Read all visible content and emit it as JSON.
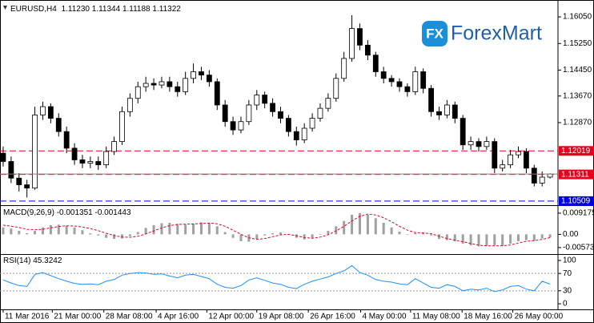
{
  "chart_data": [
    {
      "type": "candlestick",
      "title": "EURUSD,H4",
      "ohlc_labels": [
        "1.11230",
        "1.11344",
        "1.11188",
        "1.11322"
      ],
      "open": [
        1.1195,
        1.117,
        1.112,
        1.11,
        1.109,
        1.131,
        1.1335,
        1.13,
        1.126,
        1.121,
        1.1175,
        1.1165,
        1.117,
        1.116,
        1.12,
        1.123,
        1.132,
        1.136,
        1.1395,
        1.1405,
        1.14,
        1.141,
        1.1395,
        1.138,
        1.142,
        1.144,
        1.143,
        1.141,
        1.134,
        1.129,
        1.1265,
        1.129,
        1.134,
        1.137,
        1.1345,
        1.132,
        1.13,
        1.126,
        1.1235,
        1.127,
        1.13,
        1.133,
        1.136,
        1.142,
        1.148,
        1.157,
        1.152,
        1.149,
        1.144,
        1.142,
        1.141,
        1.1395,
        1.138,
        1.144,
        1.139,
        1.132,
        1.131,
        1.134,
        1.13,
        1.122,
        1.123,
        1.1215,
        1.123,
        1.115,
        1.116,
        1.119,
        1.12,
        1.115,
        1.1105,
        1.1123
      ],
      "high": [
        1.1215,
        1.1185,
        1.1135,
        1.1115,
        1.1335,
        1.135,
        1.1345,
        1.1315,
        1.1275,
        1.1225,
        1.119,
        1.1185,
        1.1185,
        1.1215,
        1.1245,
        1.1335,
        1.1375,
        1.141,
        1.1425,
        1.142,
        1.1425,
        1.1425,
        1.141,
        1.144,
        1.1465,
        1.1455,
        1.1445,
        1.142,
        1.1355,
        1.1305,
        1.1305,
        1.1355,
        1.1385,
        1.138,
        1.136,
        1.1335,
        1.131,
        1.1275,
        1.1285,
        1.1315,
        1.1345,
        1.1375,
        1.1435,
        1.15,
        1.161,
        1.1585,
        1.1535,
        1.15,
        1.1455,
        1.143,
        1.142,
        1.1405,
        1.1455,
        1.145,
        1.14,
        1.1335,
        1.1355,
        1.135,
        1.131,
        1.1245,
        1.124,
        1.1245,
        1.124,
        1.1175,
        1.1205,
        1.1215,
        1.121,
        1.116,
        1.114,
        1.11344
      ],
      "low": [
        1.1155,
        1.1105,
        1.108,
        1.1062,
        1.1085,
        1.1295,
        1.1285,
        1.1245,
        1.1195,
        1.116,
        1.115,
        1.115,
        1.1145,
        1.115,
        1.119,
        1.122,
        1.1305,
        1.1345,
        1.138,
        1.1385,
        1.139,
        1.138,
        1.1365,
        1.137,
        1.1405,
        1.1415,
        1.1395,
        1.1325,
        1.1275,
        1.125,
        1.1255,
        1.128,
        1.1325,
        1.133,
        1.1305,
        1.1285,
        1.1245,
        1.1218,
        1.1225,
        1.126,
        1.129,
        1.132,
        1.135,
        1.141,
        1.147,
        1.1505,
        1.1475,
        1.1425,
        1.1405,
        1.1395,
        1.138,
        1.1365,
        1.137,
        1.1375,
        1.1305,
        1.1295,
        1.13,
        1.1285,
        1.1205,
        1.1205,
        1.12,
        1.1205,
        1.1135,
        1.114,
        1.115,
        1.118,
        1.1135,
        1.1095,
        1.1095,
        1.11188
      ],
      "close": [
        1.117,
        1.112,
        1.11,
        1.109,
        1.131,
        1.1335,
        1.13,
        1.126,
        1.121,
        1.1175,
        1.1165,
        1.117,
        1.116,
        1.12,
        1.123,
        1.132,
        1.136,
        1.1395,
        1.1405,
        1.14,
        1.141,
        1.1395,
        1.138,
        1.142,
        1.144,
        1.143,
        1.141,
        1.134,
        1.129,
        1.1265,
        1.129,
        1.134,
        1.137,
        1.1345,
        1.132,
        1.13,
        1.126,
        1.1235,
        1.127,
        1.13,
        1.133,
        1.136,
        1.142,
        1.148,
        1.157,
        1.152,
        1.149,
        1.144,
        1.142,
        1.141,
        1.1395,
        1.138,
        1.144,
        1.139,
        1.132,
        1.131,
        1.134,
        1.13,
        1.122,
        1.123,
        1.1215,
        1.123,
        1.115,
        1.116,
        1.119,
        1.12,
        1.115,
        1.1105,
        1.1123,
        1.11322
      ],
      "colors": {
        "up": "#ffffff",
        "down": "#000000",
        "outline": "#000000",
        "bid": "#808080"
      },
      "xlim": [
        -0.4,
        70
      ],
      "xticks": [
        {
          "value": 0,
          "label": "11 Mar 2016"
        },
        {
          "value": 6.2,
          "label": "21 Mar 00:00"
        },
        {
          "value": 12.7,
          "label": "28 Mar 08:00"
        },
        {
          "value": 19.3,
          "label": "4 Apr 16:00"
        },
        {
          "value": 25.7,
          "label": "12 Apr 00:00"
        },
        {
          "value": 32.0,
          "label": "19 Apr 08:00"
        },
        {
          "value": 38.5,
          "label": "26 Apr 16:00"
        },
        {
          "value": 45.1,
          "label": "4 May 00:00"
        },
        {
          "value": 51.4,
          "label": "11 May 08:00"
        },
        {
          "value": 57.9,
          "label": "18 May 16:00"
        },
        {
          "value": 64.3,
          "label": "26 May 00:00"
        }
      ],
      "ylim": [
        1.1041,
        1.1651
      ],
      "yticks": [
        {
          "value": 1.1605,
          "label": "1.16050"
        },
        {
          "value": 1.1525,
          "label": "1.15250"
        },
        {
          "value": 1.1445,
          "label": "1.14450"
        },
        {
          "value": 1.1367,
          "label": "1.13670"
        },
        {
          "value": 1.1287,
          "label": "1.12870"
        }
      ],
      "levels": [
        {
          "value": 1.12019,
          "color": "#e8001c"
        },
        {
          "value": 1.11311,
          "color": "#e8001c"
        },
        {
          "value": 1.10509,
          "color": "#0000e0"
        }
      ]
    },
    {
      "type": "macd",
      "title": "MACD(9,26,9)",
      "value_labels": [
        "-0.001351",
        "-0.001443"
      ],
      "histogram": [
        0.003,
        0.0025,
        0.0015,
        0.0005,
        0.0015,
        0.003,
        0.004,
        0.0042,
        0.0038,
        0.003,
        0.0018,
        0.0005,
        -0.0005,
        -0.0015,
        -0.002,
        -0.0018,
        -0.0008,
        0.001,
        0.0028,
        0.004,
        0.0048,
        0.005,
        0.0045,
        0.0042,
        0.0046,
        0.0052,
        0.005,
        0.0035,
        0.001,
        -0.0015,
        -0.003,
        -0.0032,
        -0.002,
        -0.0005,
        0.0005,
        0.0008,
        -0.0002,
        -0.0015,
        -0.0022,
        -0.0015,
        -0.0002,
        0.0015,
        0.0035,
        0.0058,
        0.0085,
        0.0092,
        0.0085,
        0.007,
        0.005,
        0.003,
        0.0012,
        -0.0002,
        0.0005,
        0.0008,
        -0.0005,
        -0.002,
        -0.0025,
        -0.003,
        -0.004,
        -0.0048,
        -0.0052,
        -0.005,
        -0.0048,
        -0.005,
        -0.004,
        -0.003,
        -0.0025,
        -0.0028,
        -0.0018,
        -0.001351
      ],
      "signal": [
        0.004,
        0.0035,
        0.003,
        0.0022,
        0.002,
        0.0022,
        0.0028,
        0.0034,
        0.0037,
        0.0036,
        0.0032,
        0.0025,
        0.0016,
        0.0005,
        -0.0005,
        -0.0012,
        -0.0013,
        -0.0008,
        0.0002,
        0.0015,
        0.0028,
        0.0038,
        0.0043,
        0.0044,
        0.0045,
        0.0047,
        0.0049,
        0.0046,
        0.0035,
        0.0018,
        0.0,
        -0.0015,
        -0.0022,
        -0.0018,
        -0.001,
        -0.0002,
        0.0,
        -0.0006,
        -0.0014,
        -0.0017,
        -0.0012,
        -0.0002,
        0.0015,
        0.0035,
        0.0058,
        0.0078,
        0.0088,
        0.0084,
        0.0072,
        0.0055,
        0.0035,
        0.0018,
        0.0008,
        0.0006,
        0.0003,
        -0.0008,
        -0.0018,
        -0.0025,
        -0.0032,
        -0.004,
        -0.0047,
        -0.005,
        -0.005,
        -0.005,
        -0.0046,
        -0.0038,
        -0.003,
        -0.0027,
        -0.0022,
        -0.001443
      ],
      "colors": {
        "histogram": "#a0a0a0",
        "signal": "#e8001c"
      },
      "ylim": [
        -0.0082,
        0.0116
      ],
      "yticks": [
        0.009175,
        {
          "value": 0,
          "label": "0.00"
        },
        -0.00573
      ]
    },
    {
      "type": "line",
      "title": "RSI(14)",
      "values": [
        55,
        48,
        42,
        40,
        68,
        72,
        65,
        58,
        52,
        47,
        45,
        46,
        44,
        52,
        56,
        66,
        70,
        72,
        71,
        68,
        69,
        64,
        60,
        66,
        68,
        63,
        58,
        45,
        38,
        36,
        42,
        55,
        60,
        54,
        48,
        45,
        38,
        35,
        45,
        52,
        57,
        62,
        70,
        76,
        88,
        72,
        66,
        56,
        52,
        50,
        46,
        44,
        58,
        48,
        38,
        36,
        44,
        40,
        30,
        34,
        32,
        36,
        28,
        32,
        40,
        42,
        34,
        30,
        52,
        45.3242
      ],
      "color": "#1e90ff",
      "ylim": [
        -11,
        111
      ],
      "yticks": [
        100,
        70,
        30,
        0
      ],
      "levels": [
        70,
        30
      ]
    }
  ],
  "logo": {
    "icon": "FX",
    "text": "ForexMart"
  }
}
